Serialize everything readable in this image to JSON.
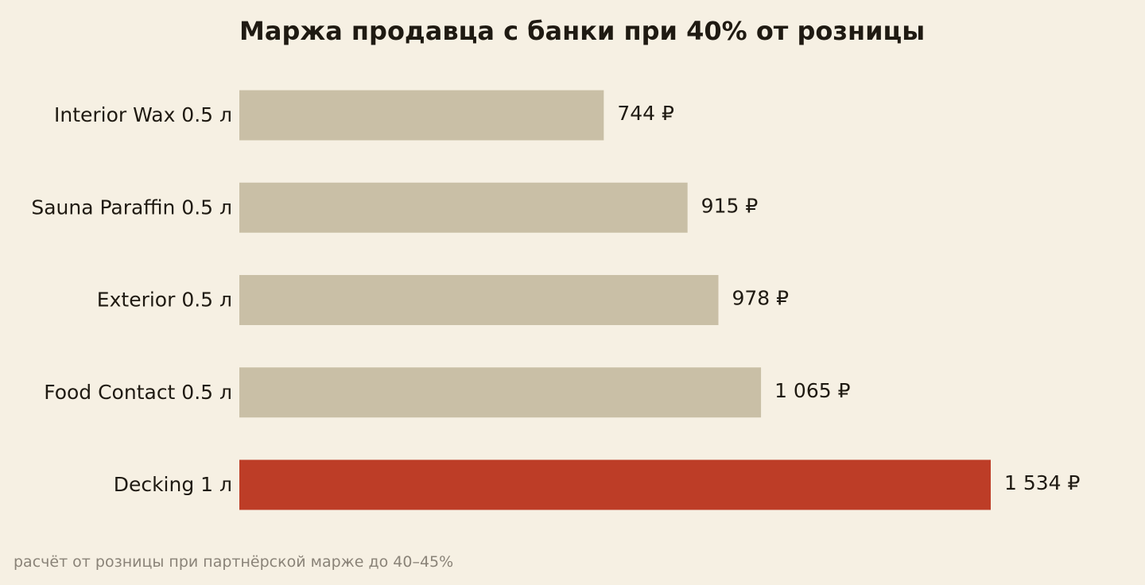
{
  "chart_data": {
    "type": "bar",
    "orientation": "horizontal",
    "title": "Маржа продавца с банки при 40% от розницы",
    "categories": [
      "Interior Wax 0.5 л",
      "Sauna Paraffin 0.5 л",
      "Exterior 0.5 л",
      "Food Contact 0.5 л",
      "Decking 1 л"
    ],
    "values": [
      744,
      915,
      978,
      1065,
      1534
    ],
    "value_labels": [
      "744 ₽",
      "915 ₽",
      "978 ₽",
      "1 065 ₽",
      "1 534 ₽"
    ],
    "xlim": [
      0,
      1534
    ],
    "grid": false,
    "legend": "none",
    "colors": {
      "default": "#c9bfa6",
      "highlight": "#bd3d27",
      "text": "#1f1a12"
    },
    "highlight_index": 4
  },
  "footnote": "расчёт от розницы при партнёрской марже до 40–45%"
}
